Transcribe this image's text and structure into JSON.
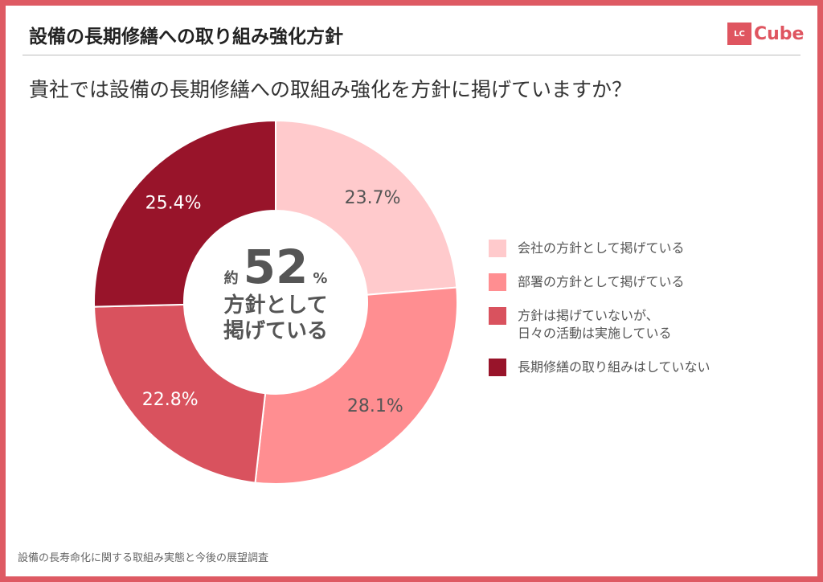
{
  "header": {
    "title": "設備の長期修繕への取り組み強化方針",
    "logo_badge": "LC",
    "logo_text": "Cube"
  },
  "question": "貴社では設備の長期修繕への取組み強化を方針に掲げていますか？",
  "center": {
    "prefix": "約",
    "value": "52",
    "unit": "%",
    "line1": "方針として",
    "line2": "掲げている"
  },
  "footer": {
    "source": "設備の長寿命化に関する取組み実態と今後の展望調査"
  },
  "colors": {
    "border": "#de5a63",
    "accent": "#df5560"
  },
  "chart_data": {
    "type": "pie",
    "donut": true,
    "start": "top-clockwise",
    "legend_position": "right",
    "categories": [
      "会社の方針として掲げている",
      "部署の方針として掲げている",
      "方針は掲げていないが、\n日々の活動は実施している",
      "長期修繕の取り組みはしていない"
    ],
    "values": [
      23.7,
      28.1,
      22.8,
      25.4
    ],
    "labels": [
      "23.7%",
      "28.1%",
      "22.8%",
      "25.4%"
    ],
    "colors": [
      "#ffcacc",
      "#ff8e91",
      "#d9525e",
      "#98142a"
    ]
  }
}
